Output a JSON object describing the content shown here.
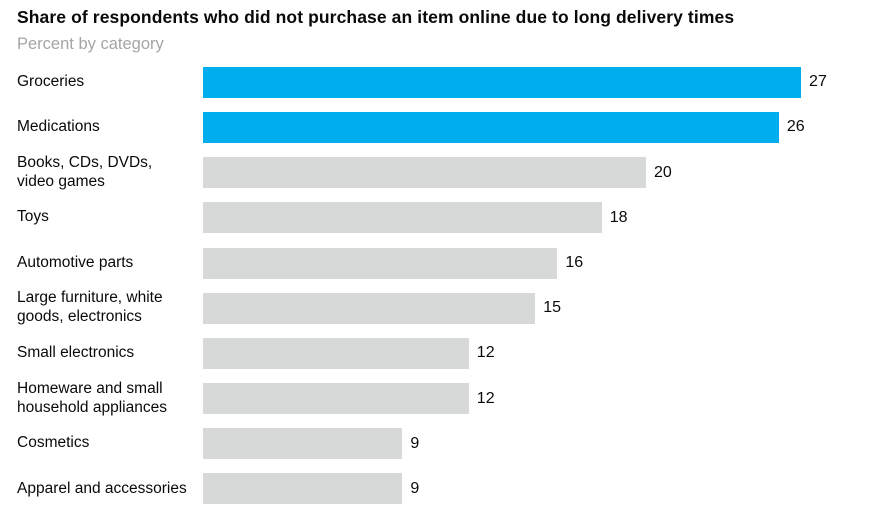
{
  "chart_data": {
    "type": "bar",
    "orientation": "horizontal",
    "title": "Share of respondents who did not purchase an item online due to long delivery times",
    "subtitle": "Percent by category",
    "categories": [
      "Groceries",
      "Medications",
      "Books, CDs, DVDs,\nvideo games",
      "Toys",
      "Automotive parts",
      "Large furniture, white\ngoods, electronics",
      "Small electronics",
      "Homeware and small\nhousehold appliances",
      "Cosmetics",
      "Apparel and accessories"
    ],
    "values": [
      27,
      26,
      20,
      18,
      16,
      15,
      12,
      12,
      9,
      9
    ],
    "bar_colors": [
      "#00ADEE",
      "#00ADEE",
      "#D6D9D8",
      "#D6D9D8",
      "#D6D9D8",
      "#D6D9D8",
      "#D6D9D8",
      "#D6D9D8",
      "#D6D9D8",
      "#D6D9D8"
    ],
    "highlight_color": "#00ADEE",
    "default_color": "#D6D9D8",
    "value_labels_shown": true,
    "xlim": [
      0,
      27
    ],
    "grid": false,
    "legend": false,
    "axis_ticks_shown": false
  }
}
